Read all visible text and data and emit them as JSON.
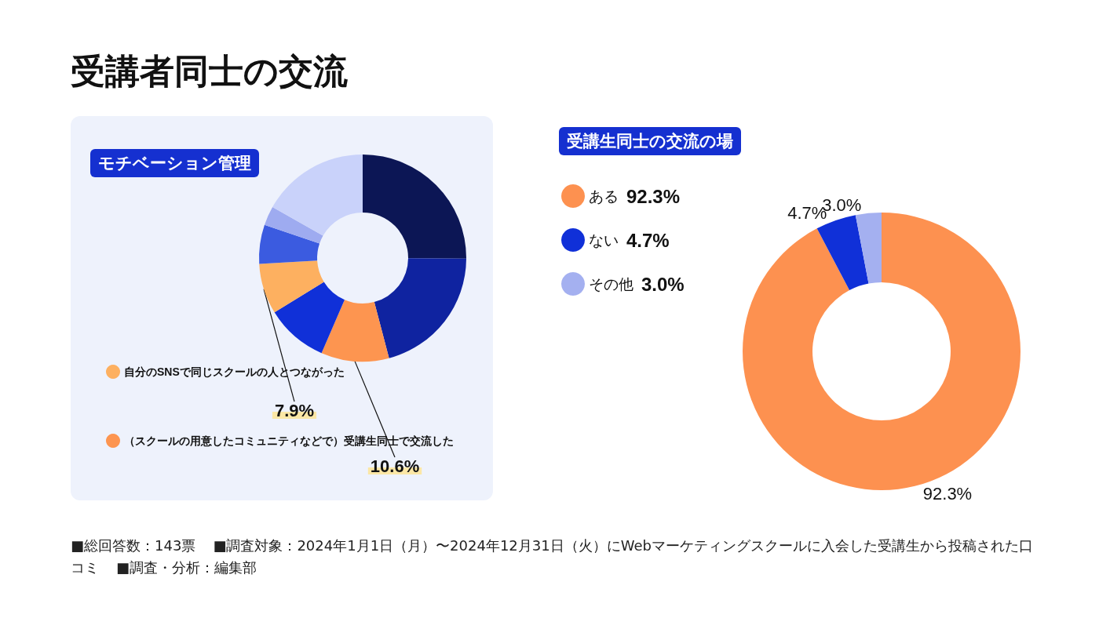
{
  "chart_data": [
    {
      "type": "donut",
      "title": "受講者同士の交流",
      "subtitle": "モチベーション管理",
      "categories": [
        null,
        null,
        "（スクールの用意したコミュニティなどで）受講生同士で交流した",
        null,
        "自分のSNSで同じスクールの人とつながった",
        null,
        null,
        null
      ],
      "values": [
        25.1,
        20.8,
        10.6,
        9.7,
        7.9,
        6.1,
        3.0,
        16.8
      ],
      "colors": [
        "#0c1655",
        "#0f23a0",
        "#fd9550",
        "#1030d8",
        "#fdb060",
        "#3b5be0",
        "#9eabf0",
        "#c9d2fa"
      ],
      "value_labels": [
        null,
        null,
        "10.6%",
        null,
        "7.9%",
        null,
        null,
        null
      ],
      "legend": "bottom left"
    },
    {
      "type": "donut",
      "title": "受講生同士の交流の場",
      "categories": [
        "ある",
        "ない",
        "その他"
      ],
      "values": [
        92.3,
        4.7,
        3.0
      ],
      "colors": [
        "#fd9150",
        "#1030d8",
        "#a4b0f0"
      ],
      "value_labels": [
        "92.3%",
        "4.7%",
        "3.0%"
      ],
      "legend": "top left",
      "annotations": [
        "■総回答数：143票",
        "■調査対象：2024年1月1日（月）〜2024年12月31日（火）にWebマーケティングスクールに入会した受講生から投稿された口コミ",
        "■調査・分析：編集部"
      ]
    }
  ]
}
